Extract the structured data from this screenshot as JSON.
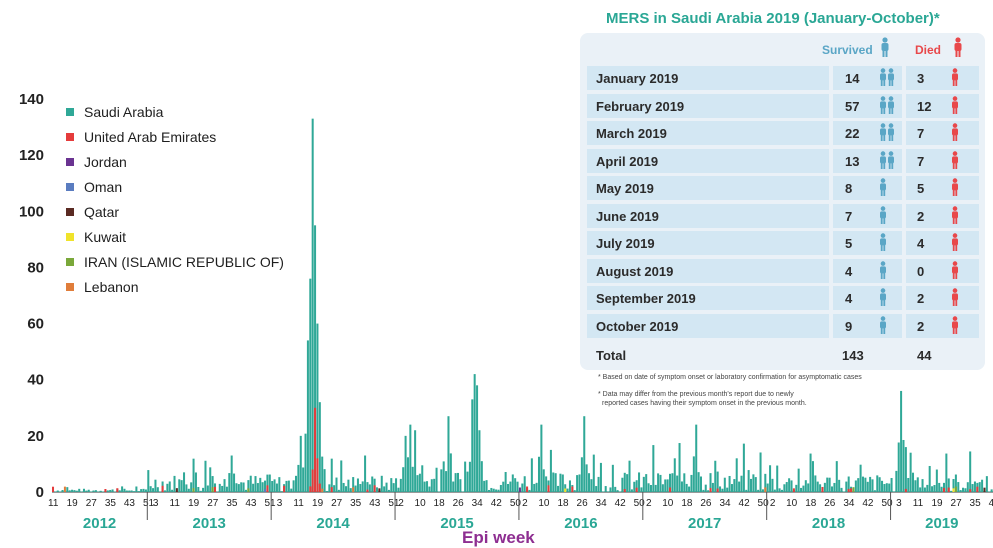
{
  "chart_data": {
    "type": "bar",
    "stacked": true,
    "xlabel": "Epi week",
    "ylabel": "",
    "ylim": [
      0,
      140
    ],
    "yticks": [
      0,
      20,
      40,
      60,
      80,
      100,
      120,
      140
    ],
    "grid": false,
    "legend_position": "top-left",
    "series": [
      {
        "name": "Saudi Arabia",
        "color": "#2fa897"
      },
      {
        "name": "United Arab Emirates",
        "color": "#e53b3b"
      },
      {
        "name": "Jordan",
        "color": "#6a3391"
      },
      {
        "name": "Oman",
        "color": "#5a7cc0"
      },
      {
        "name": "Qatar",
        "color": "#5a2a22"
      },
      {
        "name": "Kuwait",
        "color": "#f0e32a"
      },
      {
        "name": "IRAN (ISLAMIC REPUBLIC OF)",
        "color": "#7aa83a"
      },
      {
        "name": "Lebanon",
        "color": "#e07d3a"
      }
    ],
    "years": [
      {
        "year": "2012",
        "ticks": [
          "11",
          "19",
          "27",
          "35",
          "43",
          "51"
        ]
      },
      {
        "year": "2013",
        "ticks": [
          "3",
          "11",
          "19",
          "27",
          "35",
          "43",
          "51"
        ]
      },
      {
        "year": "2014",
        "ticks": [
          "3",
          "11",
          "19",
          "27",
          "35",
          "43",
          "51"
        ]
      },
      {
        "year": "2015",
        "ticks": [
          "2",
          "10",
          "18",
          "26",
          "34",
          "42",
          "50"
        ]
      },
      {
        "year": "2016",
        "ticks": [
          "2",
          "10",
          "18",
          "26",
          "34",
          "42",
          "50"
        ]
      },
      {
        "year": "2017",
        "ticks": [
          "2",
          "10",
          "18",
          "26",
          "34",
          "42",
          "50"
        ]
      },
      {
        "year": "2018",
        "ticks": [
          "2",
          "10",
          "18",
          "26",
          "34",
          "42",
          "50"
        ]
      },
      {
        "year": "2019",
        "ticks": [
          "3",
          "11",
          "19",
          "27",
          "35",
          "43"
        ]
      }
    ],
    "weeks_per_year": [
      40,
      52,
      52,
      52,
      52,
      52,
      52,
      43
    ],
    "peaks": [
      {
        "year_index": 0,
        "week": 30,
        "value": 2
      },
      {
        "year_index": 1,
        "week": 16,
        "value": 7
      },
      {
        "year_index": 1,
        "week": 36,
        "value": 13
      },
      {
        "year_index": 2,
        "week": 13,
        "value": 20
      },
      {
        "year_index": 2,
        "week": 16,
        "value": 54
      },
      {
        "year_index": 2,
        "week": 17,
        "value": 76
      },
      {
        "year_index": 2,
        "week": 18,
        "value": 133
      },
      {
        "year_index": 2,
        "week": 19,
        "value": 95
      },
      {
        "year_index": 2,
        "week": 20,
        "value": 60
      },
      {
        "year_index": 2,
        "week": 21,
        "value": 32
      },
      {
        "year_index": 2,
        "week": 40,
        "value": 13
      },
      {
        "year_index": 3,
        "week": 5,
        "value": 20
      },
      {
        "year_index": 3,
        "week": 7,
        "value": 24
      },
      {
        "year_index": 3,
        "week": 9,
        "value": 22
      },
      {
        "year_index": 3,
        "week": 23,
        "value": 27
      },
      {
        "year_index": 3,
        "week": 33,
        "value": 33
      },
      {
        "year_index": 3,
        "week": 34,
        "value": 42
      },
      {
        "year_index": 3,
        "week": 35,
        "value": 38
      },
      {
        "year_index": 3,
        "week": 36,
        "value": 22
      },
      {
        "year_index": 4,
        "week": 10,
        "value": 24
      },
      {
        "year_index": 4,
        "week": 14,
        "value": 15
      },
      {
        "year_index": 4,
        "week": 28,
        "value": 27
      },
      {
        "year_index": 5,
        "week": 14,
        "value": 12
      },
      {
        "year_index": 5,
        "week": 23,
        "value": 24
      },
      {
        "year_index": 5,
        "week": 40,
        "value": 12
      },
      {
        "year_index": 6,
        "week": 20,
        "value": 11
      },
      {
        "year_index": 6,
        "week": 30,
        "value": 11
      },
      {
        "year_index": 7,
        "week": 5,
        "value": 36
      },
      {
        "year_index": 7,
        "week": 7,
        "value": 16
      },
      {
        "year_index": 7,
        "week": 9,
        "value": 14
      },
      {
        "year_index": 7,
        "week": 20,
        "value": 8
      }
    ]
  },
  "table": {
    "title": "MERS in Saudi Arabia 2019 (January-October)*",
    "survived_label": "Survived",
    "died_label": "Died",
    "rows": [
      {
        "month": "January 2019",
        "survived": "14",
        "died": "3"
      },
      {
        "month": "February 2019",
        "survived": "57",
        "died": "12"
      },
      {
        "month": "March 2019",
        "survived": "22",
        "died": "7"
      },
      {
        "month": "April 2019",
        "survived": "13",
        "died": "7"
      },
      {
        "month": "May 2019",
        "survived": "8",
        "died": "5"
      },
      {
        "month": "June 2019",
        "survived": "7",
        "died": "2"
      },
      {
        "month": "July 2019",
        "survived": "5",
        "died": "4"
      },
      {
        "month": "August 2019",
        "survived": "4",
        "died": "0"
      },
      {
        "month": "September 2019",
        "survived": "4",
        "died": "2"
      },
      {
        "month": "October 2019",
        "survived": "9",
        "died": "2"
      }
    ],
    "total_label": "Total",
    "total_survived": "143",
    "total_died": "44",
    "footnote1": "* Based on date of symptom onset or laboratory confirmation for asymptomatic cases",
    "footnote2a": "* Data may differ from the previous month's report due to newly",
    "footnote2b": "reported cases having their symptom onset in the previous month."
  }
}
